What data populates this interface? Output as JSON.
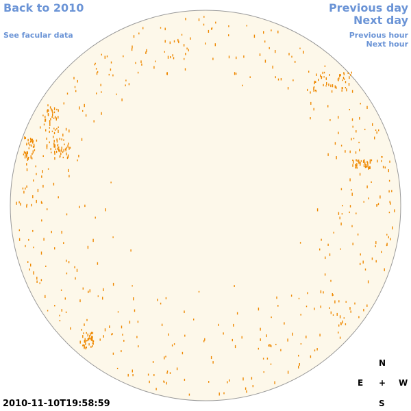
{
  "nav": {
    "back": "Back to 2010",
    "facular": "See facular data",
    "prev_day": "Previous day",
    "next_day": "Next day",
    "prev_hour": "Previous hour",
    "next_hour": "Next hour"
  },
  "timestamp": "2010-11-10T19:58:59",
  "compass": {
    "n": "N",
    "e": "E",
    "plus": "+",
    "w": "W",
    "s": "S"
  },
  "colors": {
    "disk_fill": "#fdf8ea",
    "disk_stroke": "#999999",
    "feature": "#ee8800",
    "link": "#6b94d6"
  }
}
